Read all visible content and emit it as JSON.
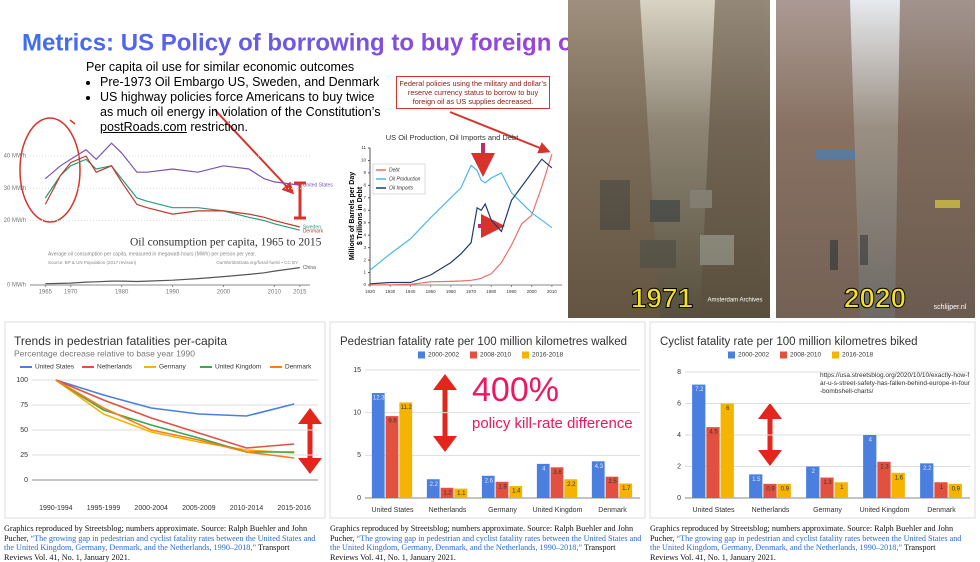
{
  "title": "Metrics: US Policy of borrowing to buy foreign oil",
  "intro": "Per capita oil use for similar economic outcomes",
  "bullets": [
    "Pre-1973 Oil Embargo US, Sweden, and Denmark",
    "US highway policies force Americans to buy twice as much oil energy in violation of the Constitution’s"
  ],
  "bullet_link": "postRoads.com",
  "bullet_end": " restriction.",
  "callout": "Federal policies using the military and dollar’s reserve currency status to borrow to buy foreign oil as US supplies decreased.",
  "photos": [
    {
      "label": "1971",
      "credit": "Amsterdam Archives"
    },
    {
      "label": "2020",
      "credit": "schlijper.nl"
    }
  ],
  "big_number": "400%",
  "big_number_text": "policy kill-rate difference",
  "captions": [
    {
      "prefix": "Graphics reproduced by Streetsblog; numbers approximate. Source: Ralph Buehler and John Pucher, ",
      "link": "“The growing gap in pedestrian and cyclist fatality rates between the United States and the United Kingdom, Germany, Denmark, and the Netherlands, 1990–2018,”",
      "suffix": " Transport Reviews Vol. 41, No. 1, January 2021."
    },
    {
      "prefix": "Graphics reproduced by Streetsblog; numbers approximate. Source: Ralph Buehler and John Pucher, ",
      "link": "“The growing gap in pedestrian and cyclist fatality rates between the United States and the United Kingdom, Germany, Denmark, and the Netherlands, 1990–2018,”",
      "suffix": " Transport Reviews Vol. 41, No. 1, January 2021."
    },
    {
      "prefix": "Graphics reproduced by Streetsblog; numbers approximate. Source: Ralph Buehler and John Pucher, ",
      "link": "“The growing gap in pedestrian and cyclist fatality rates between the United States and the United Kingdom, Germany, Denmark, and the Netherlands, 1990–2018,”",
      "suffix": " Transport Reviews Vol. 41, No. 1, January 2021."
    }
  ],
  "chart_data": [
    {
      "type": "line",
      "title": "Oil consumption per capita, 1965 to 2015",
      "subtitle": "Average oil consumption per capita, measured in megawatt-hours (MWh) per person per year.",
      "source": "Source: BP & UN Population (2017 revision)",
      "credit": "OurWorldInData.org/fossil-fuels/ • CC BY",
      "x": [
        1965,
        1968,
        1970,
        1973,
        1975,
        1978,
        1980,
        1983,
        1985,
        1990,
        1995,
        2000,
        2005,
        2008,
        2010,
        2015
      ],
      "xlim": [
        1962,
        2017
      ],
      "xticks": [
        1965,
        1970,
        1980,
        1990,
        2000,
        2010,
        2015
      ],
      "ylim": [
        0,
        45
      ],
      "yticks": [
        {
          "value": 0,
          "label": "0 MWh"
        },
        {
          "value": 20,
          "label": "20 MWh"
        },
        {
          "value": 30,
          "label": "30 MWh"
        },
        {
          "value": 40,
          "label": "40 MWh"
        }
      ],
      "grid": true,
      "legend": "end-labels",
      "series": [
        {
          "name": "United States",
          "color": "#7b52b5",
          "values": [
            33,
            37,
            39,
            42,
            39,
            44,
            41,
            35,
            35,
            36,
            35,
            37,
            36,
            33,
            32,
            31
          ]
        },
        {
          "name": "Sweden",
          "color": "#2a9d7f",
          "values": [
            27,
            34,
            37,
            39,
            36,
            37,
            33,
            27,
            26,
            24,
            24,
            23,
            21,
            20,
            19,
            17
          ]
        },
        {
          "name": "Denmark",
          "color": "#c0392b",
          "values": [
            25,
            34,
            38,
            40,
            35,
            37,
            32,
            25,
            24,
            22,
            23,
            23,
            22,
            21,
            20,
            18
          ]
        },
        {
          "name": "China",
          "color": "#555555",
          "values": [
            0.4,
            0.5,
            0.6,
            0.9,
            1,
            1.2,
            1.2,
            1.1,
            1.2,
            1.5,
            2,
            2.6,
            3.3,
            3.8,
            4.3,
            5.4
          ]
        }
      ]
    },
    {
      "type": "line",
      "title": "US Oil Production, Oil Imports and Debt",
      "ylabel": [
        "Millions of Barrels per Day",
        "$ Trillions in Debt"
      ],
      "x": [
        1920,
        1930,
        1940,
        1950,
        1960,
        1965,
        1970,
        1973,
        1975,
        1977,
        1980,
        1985,
        1990,
        1995,
        2000,
        2005,
        2010
      ],
      "xlim": [
        1920,
        2015
      ],
      "xticks": [
        1920,
        1930,
        1940,
        1950,
        1960,
        1970,
        1980,
        1990,
        2000,
        2010
      ],
      "ylim": [
        0,
        11
      ],
      "yticks": [
        0,
        1,
        2,
        3,
        4,
        5,
        6,
        7,
        8,
        9,
        10,
        11
      ],
      "grid": false,
      "legend": "top-left",
      "series": [
        {
          "name": "Debt",
          "color": "#ec6f68",
          "values": [
            0.02,
            0.02,
            0.05,
            0.26,
            0.29,
            0.32,
            0.38,
            0.46,
            0.54,
            0.7,
            0.9,
            1.8,
            3.2,
            4.9,
            5.6,
            7.9,
            10.5
          ]
        },
        {
          "name": "Oil Production",
          "color": "#4bb8ea",
          "values": [
            1.2,
            2.5,
            3.7,
            5.4,
            7.0,
            7.8,
            9.6,
            9.2,
            8.4,
            8.2,
            8.6,
            9.0,
            7.4,
            6.6,
            5.8,
            5.2,
            4.6
          ]
        },
        {
          "name": "Oil Imports",
          "color": "#1f3d6b",
          "values": [
            0.1,
            0.2,
            0.2,
            0.8,
            1.8,
            2.5,
            3.4,
            6.2,
            6.0,
            6.5,
            5.2,
            4.3,
            6.8,
            7.9,
            9.0,
            10.1,
            9.4
          ]
        }
      ]
    },
    {
      "type": "line",
      "title": "Trends in pedestrian fatalities per-capita",
      "subtitle": "Percentage decrease relative to base year 1990",
      "categories": [
        "1990-1994",
        "1995-1999",
        "2000-2004",
        "2005-2009",
        "2010-2014",
        "2015-2016"
      ],
      "ylim": [
        0,
        100
      ],
      "yticks": [
        0,
        25,
        50,
        75,
        100
      ],
      "grid": true,
      "legend": "top",
      "series": [
        {
          "name": "United States",
          "color": "#4a7fe0",
          "values": [
            100,
            85,
            72,
            66,
            64,
            76
          ]
        },
        {
          "name": "Netherlands",
          "color": "#e2513f",
          "values": [
            100,
            80,
            62,
            47,
            32,
            36
          ]
        },
        {
          "name": "Germany",
          "color": "#f4b400",
          "values": [
            100,
            66,
            48,
            38,
            30,
            27
          ]
        },
        {
          "name": "United Kingdom",
          "color": "#34a853",
          "values": [
            100,
            70,
            55,
            42,
            28,
            28
          ]
        },
        {
          "name": "Denmark",
          "color": "#ff7a1a",
          "values": [
            100,
            72,
            50,
            40,
            28,
            22
          ]
        }
      ]
    },
    {
      "type": "bar",
      "title": "Pedestrian fatality rate per 100 million kilometres walked",
      "categories": [
        "United States",
        "Netherlands",
        "Germany",
        "United Kingdom",
        "Denmark"
      ],
      "ylim": [
        0,
        15
      ],
      "yticks": [
        0,
        5,
        10,
        15
      ],
      "grid": true,
      "legend": "top",
      "series": [
        {
          "name": "2000-2002",
          "color": "#4a7fe0",
          "values": [
            12.3,
            2.2,
            2.6,
            4,
            4.3
          ]
        },
        {
          "name": "2008-2010",
          "color": "#e2513f",
          "values": [
            9.6,
            1.2,
            1.9,
            3.6,
            2.5
          ]
        },
        {
          "name": "2016-2018",
          "color": "#f4b400",
          "values": [
            11.2,
            1.1,
            1.4,
            2.2,
            1.7
          ]
        }
      ]
    },
    {
      "type": "bar",
      "title": "Cyclist fatality rate per 100 million kilometres biked",
      "annotation": "https://usa.streetsblog.org/2020/10/10/exactly-how-far-u-s-street-safety-has-fallen-behind-europe-in-four-bombshell-charts/",
      "categories": [
        "United States",
        "Netherlands",
        "Germany",
        "United Kingdom",
        "Denmark"
      ],
      "ylim": [
        0,
        8
      ],
      "yticks": [
        0,
        2,
        4,
        6,
        8
      ],
      "grid": true,
      "legend": "top",
      "series": [
        {
          "name": "2000-2002",
          "color": "#4a7fe0",
          "values": [
            7.2,
            1.5,
            2,
            4,
            2.2
          ]
        },
        {
          "name": "2008-2010",
          "color": "#e2513f",
          "values": [
            4.5,
            0.9,
            1.3,
            2.3,
            1
          ]
        },
        {
          "name": "2016-2018",
          "color": "#f4b400",
          "values": [
            6,
            0.9,
            1,
            1.6,
            0.9
          ]
        }
      ]
    }
  ]
}
